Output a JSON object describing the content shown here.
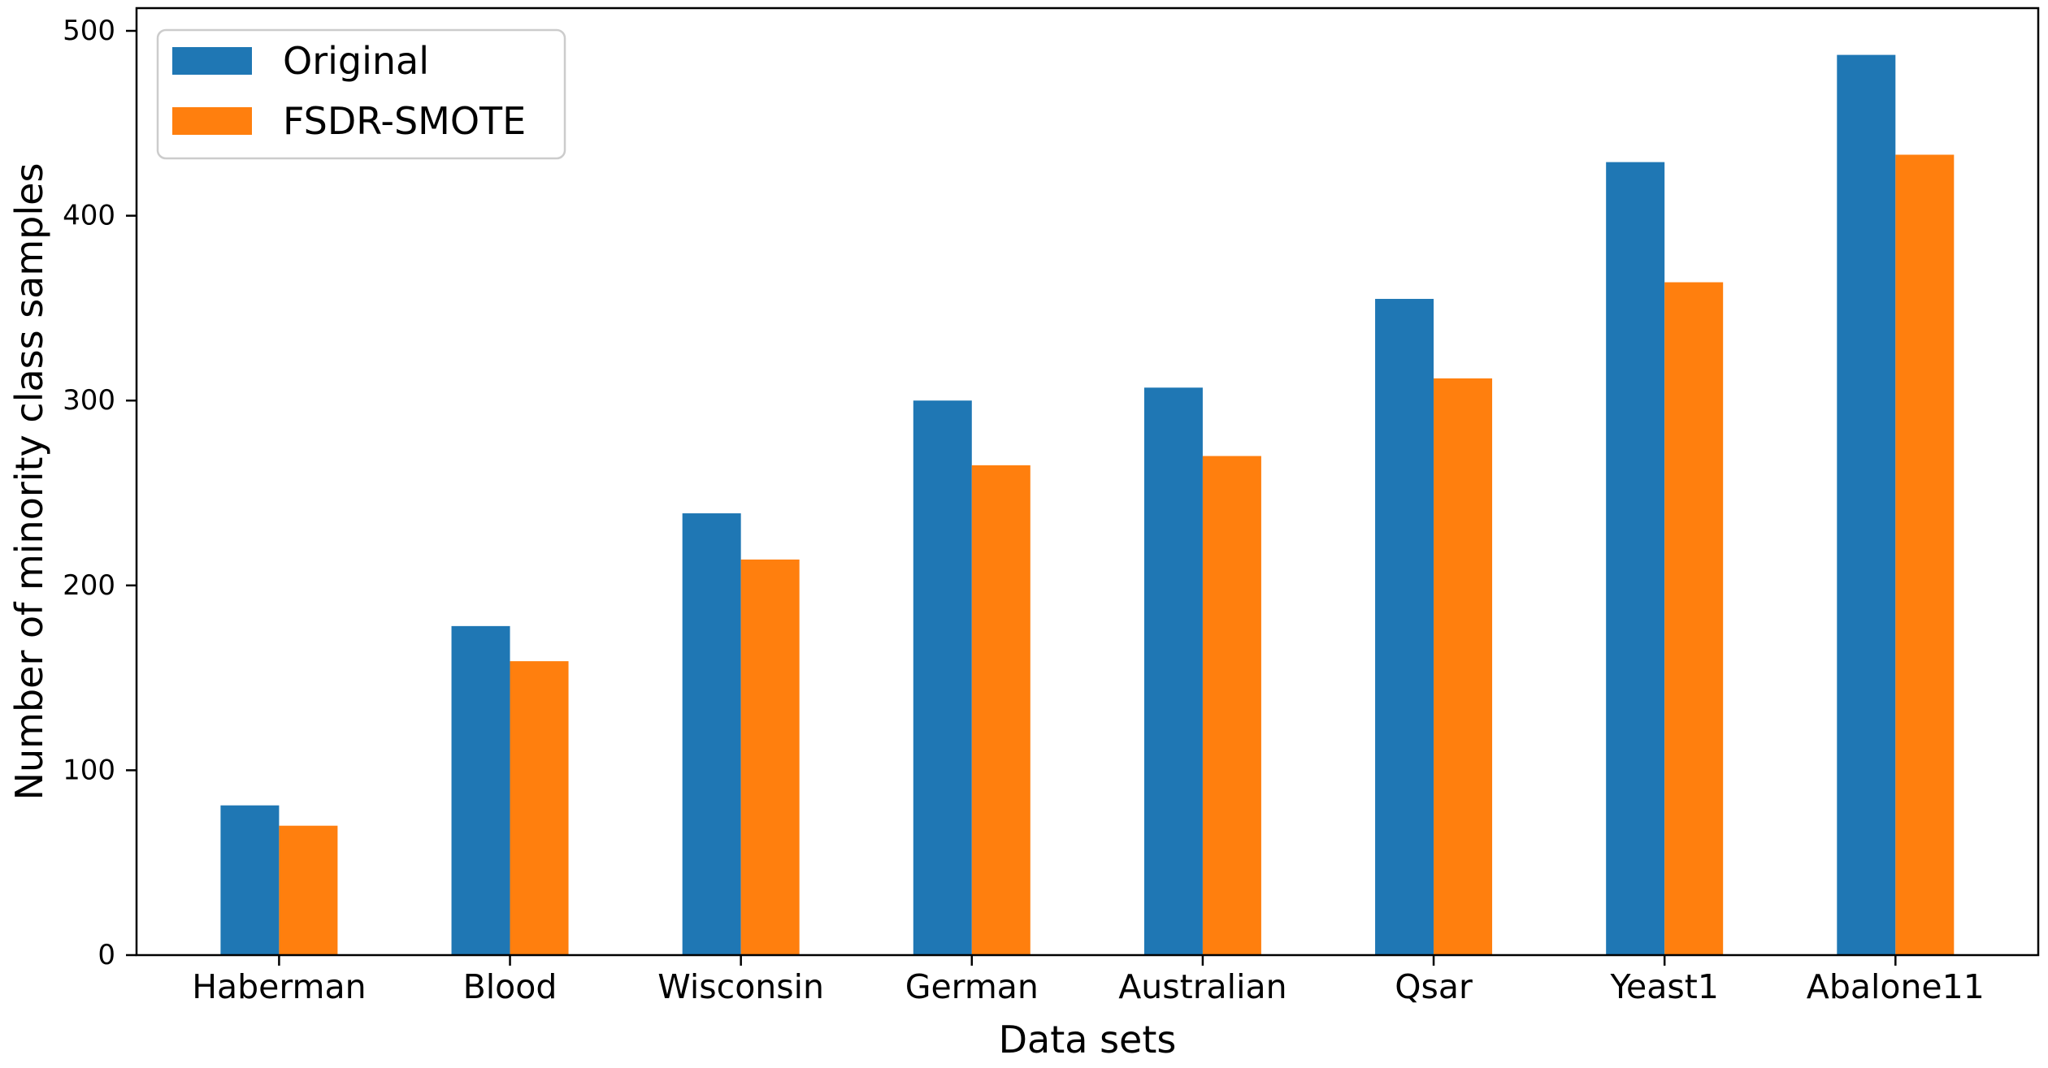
{
  "chart_data": {
    "type": "bar",
    "title": "",
    "xlabel": "Data sets",
    "ylabel": "Number of minority class samples",
    "categories": [
      "Haberman",
      "Blood",
      "Wisconsin",
      "German",
      "Australian",
      "Qsar",
      "Yeast1",
      "Abalone11"
    ],
    "series": [
      {
        "name": "Original",
        "color": "#1f77b4",
        "values": [
          81,
          178,
          239,
          300,
          307,
          355,
          429,
          487
        ]
      },
      {
        "name": "FSDR-SMOTE",
        "color": "#ff7f0e",
        "values": [
          70,
          159,
          214,
          265,
          270,
          312,
          364,
          433
        ]
      }
    ],
    "yticks": [
      0,
      100,
      200,
      300,
      400,
      500
    ],
    "ylim": [
      0,
      512
    ],
    "grid": false,
    "legend_position": "upper left",
    "background_color": "#ffffff",
    "axis_color": "#000000",
    "legend_border_color": "#cccccc"
  }
}
